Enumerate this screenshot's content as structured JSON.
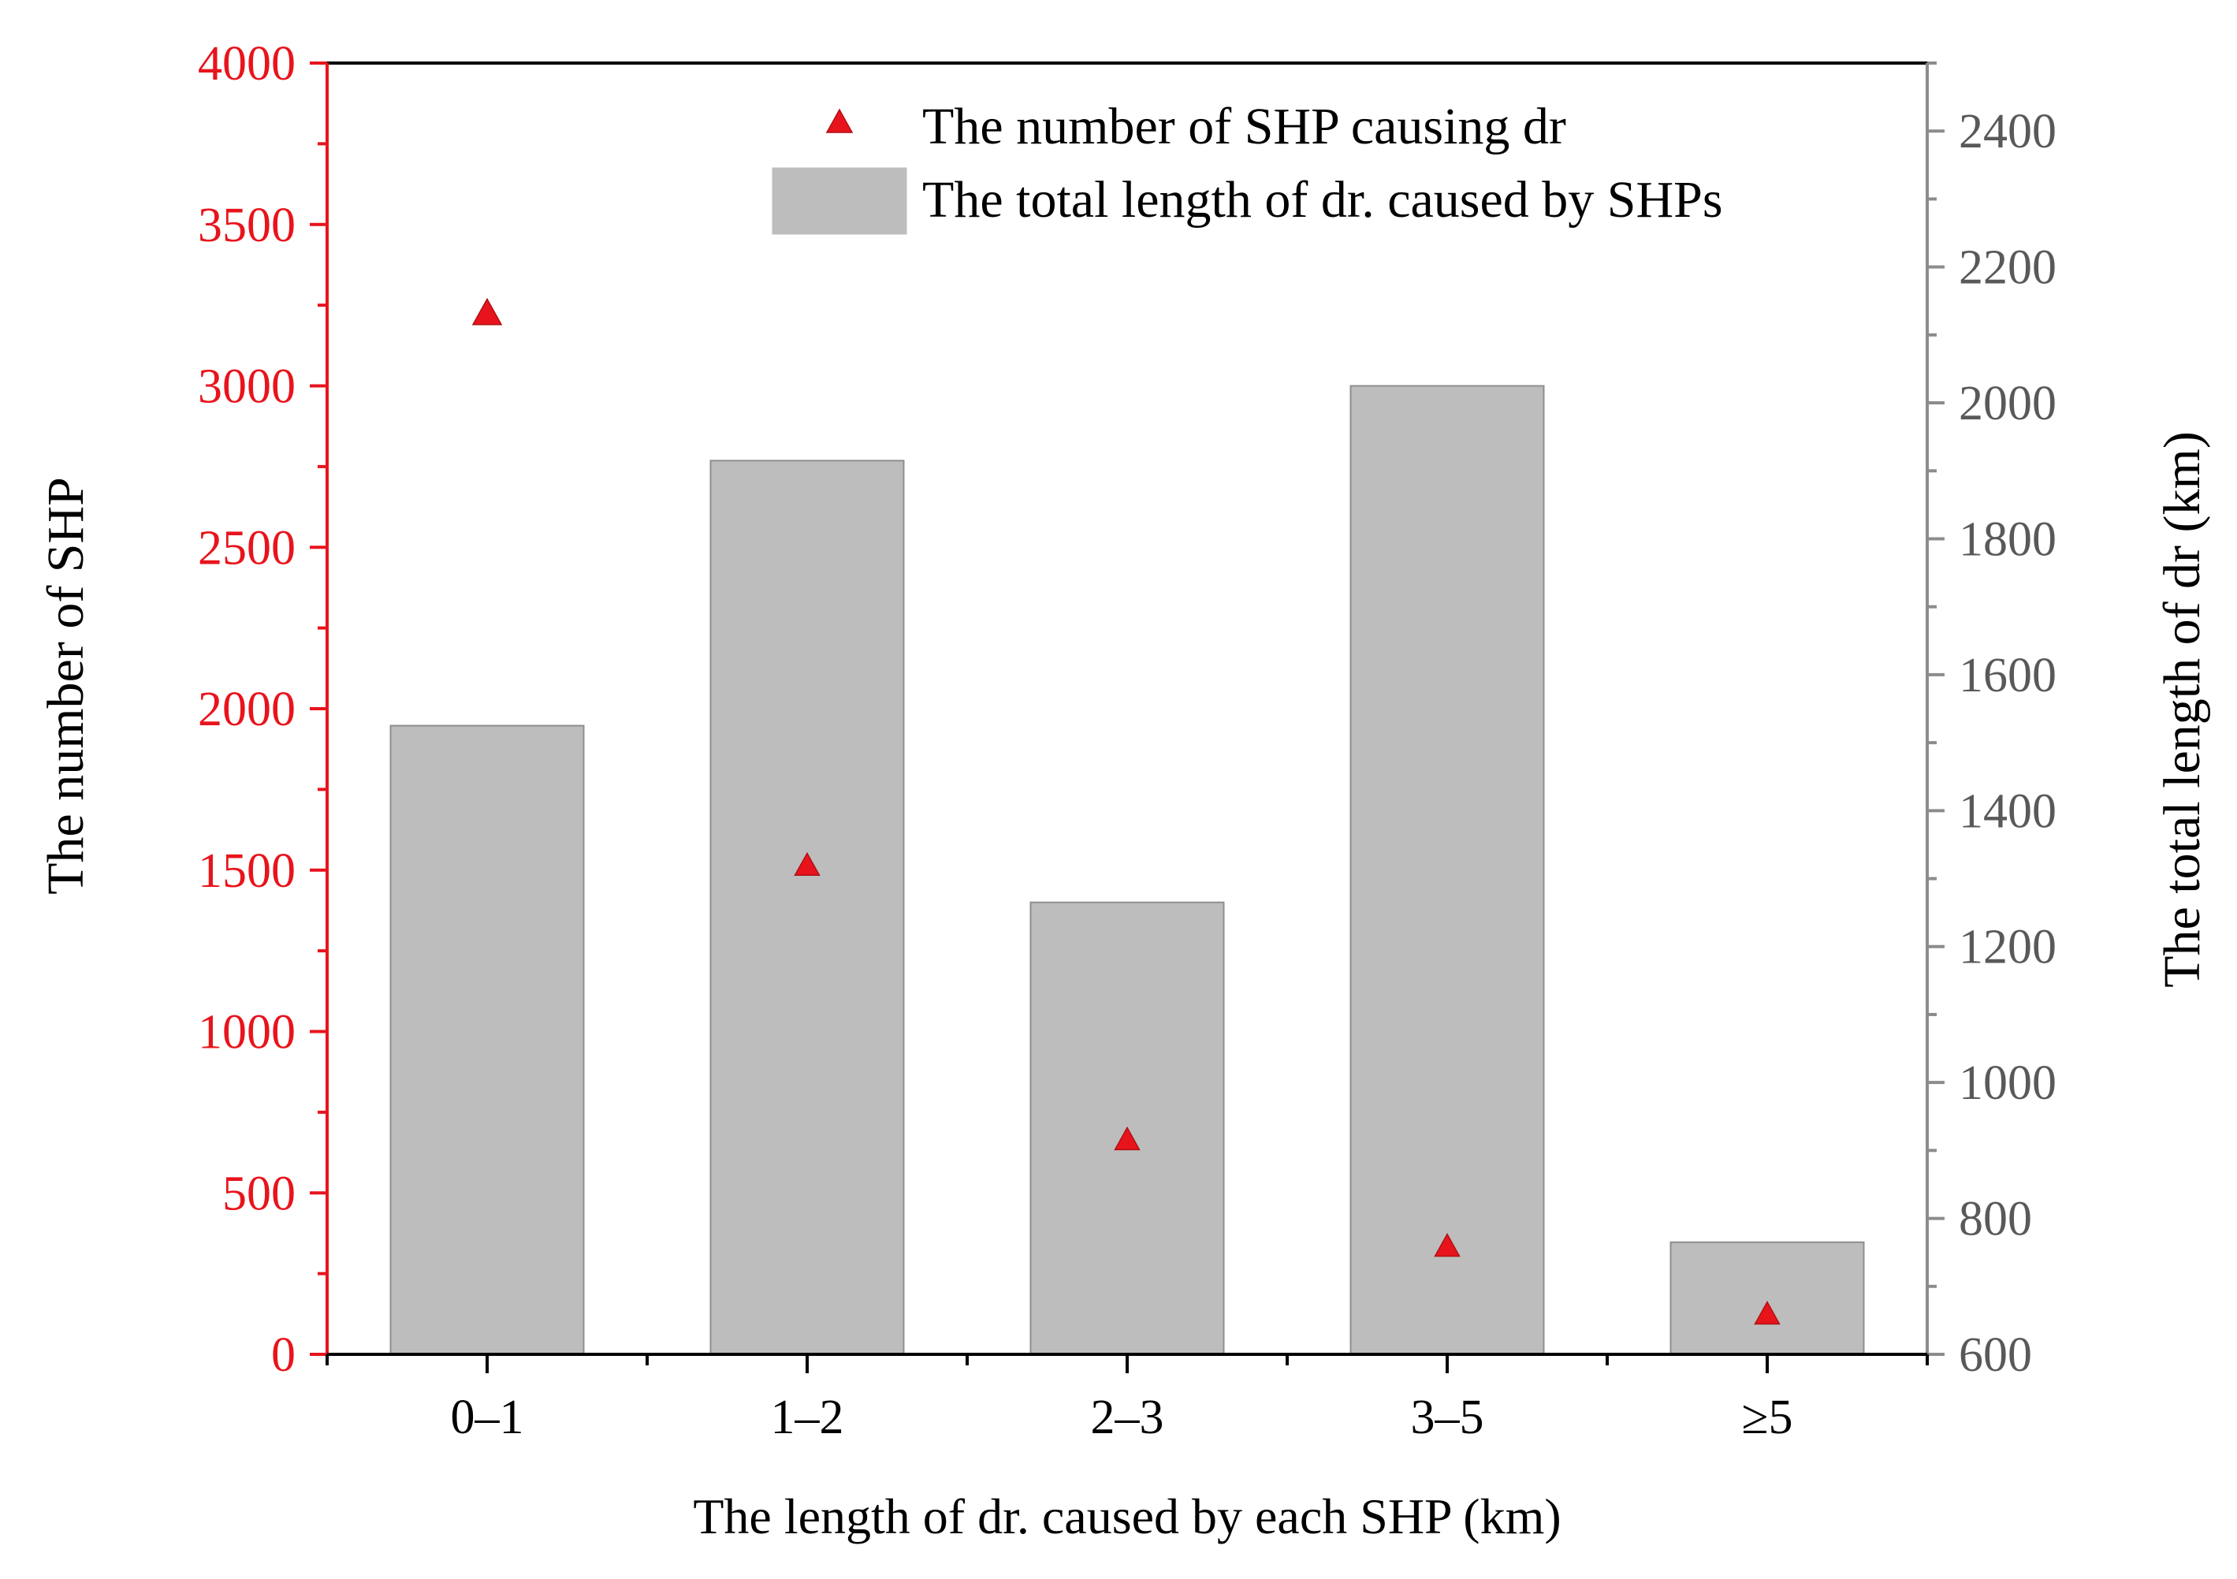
{
  "chart_data": {
    "type": "bar",
    "categories": [
      "0–1",
      "1–2",
      "2–3",
      "3–5",
      "≥5"
    ],
    "series": [
      {
        "name": "The total length of dr. caused by SHPs",
        "kind": "bar",
        "axis": "right",
        "values": [
          1525,
          1915,
          1265,
          2025,
          765
        ]
      },
      {
        "name": "The number of SHP causing dr",
        "kind": "scatter",
        "marker": "triangle",
        "axis": "left",
        "values": [
          3220,
          1510,
          660,
          330,
          120
        ]
      }
    ],
    "xlabel": "The length of dr. caused by each SHP (km)",
    "ylabel_left": "The number of SHP",
    "ylabel_right": "The total length of dr (km)",
    "ylim_left": [
      0,
      4000
    ],
    "ylim_right": [
      600,
      2500
    ],
    "yticks_left": [
      0,
      500,
      1000,
      1500,
      2000,
      2500,
      3000,
      3500,
      4000
    ],
    "yticks_right": [
      600,
      800,
      1000,
      1200,
      1400,
      1600,
      1800,
      2000,
      2200,
      2400
    ],
    "legend_position": "top-right",
    "grid": false,
    "colors": {
      "left_axis": "#e8141c",
      "right_axis": "#8c8c8c",
      "bar_fill": "#bdbdbd",
      "bar_stroke": "#8e8e8e",
      "marker": "#e8141c",
      "text": "#000000"
    }
  }
}
